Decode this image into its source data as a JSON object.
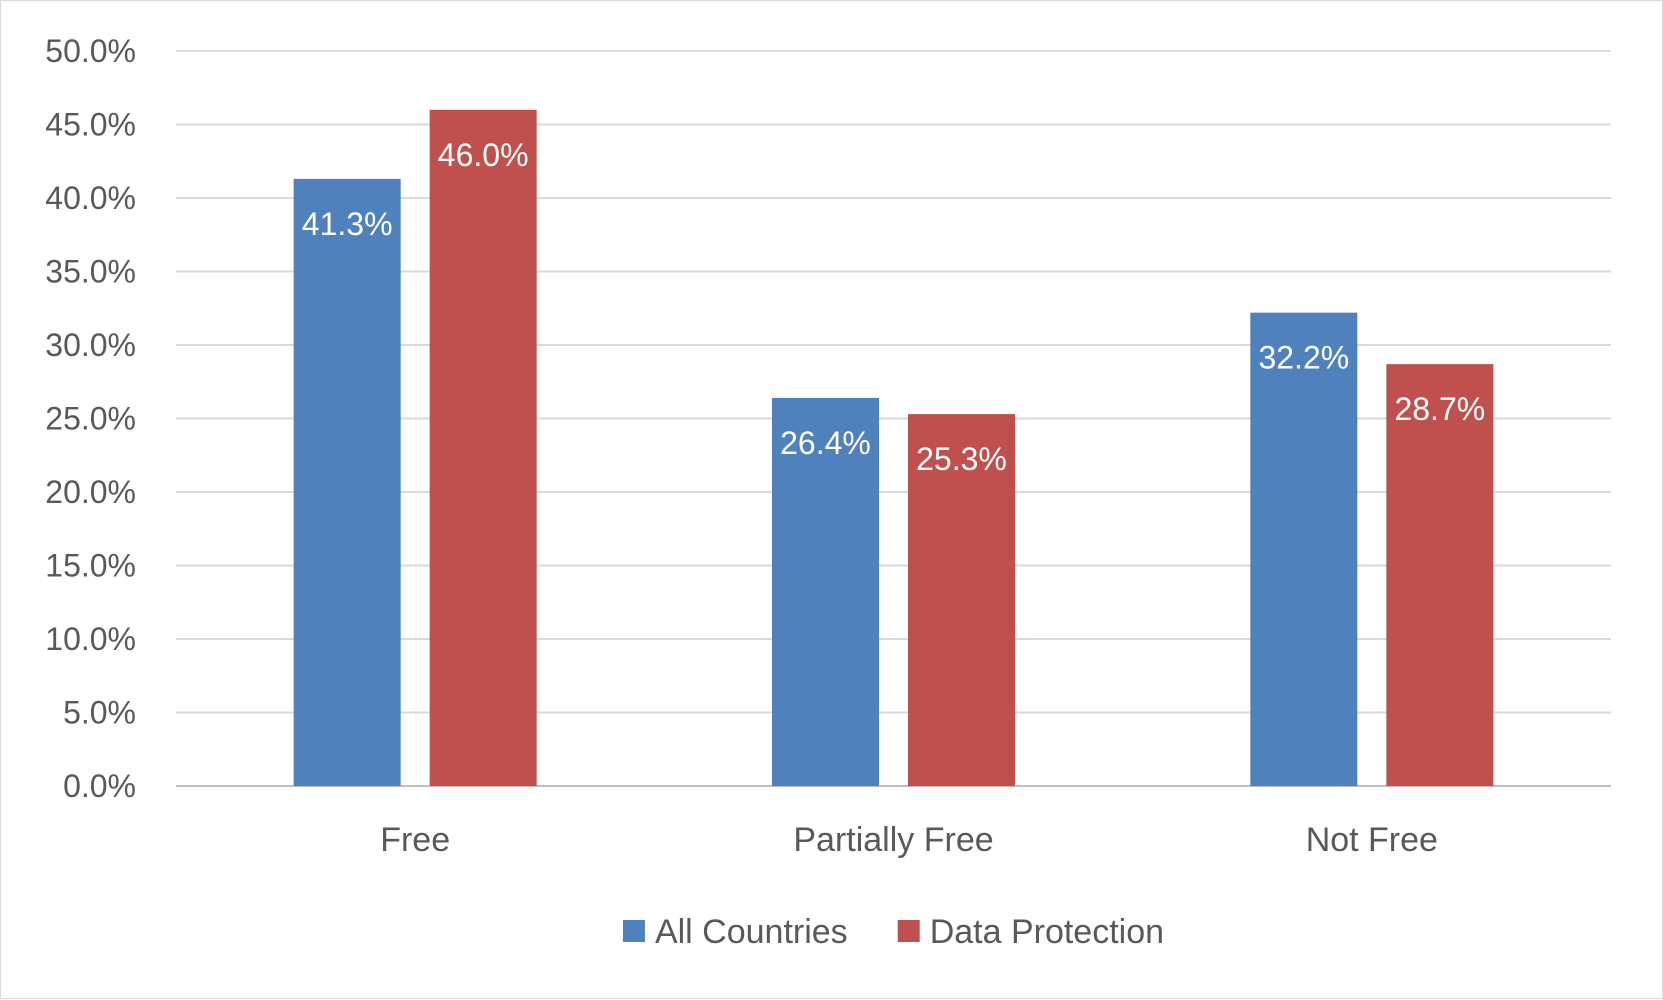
{
  "chart_data": {
    "type": "bar",
    "categories": [
      "Free",
      "Partially Free",
      "Not Free"
    ],
    "series": [
      {
        "name": "All Countries",
        "values": [
          41.3,
          26.4,
          32.2
        ],
        "labels": [
          "41.3%",
          "26.4%",
          "32.2%"
        ],
        "color": "#4f81bd"
      },
      {
        "name": "Data Protection",
        "values": [
          46.0,
          25.3,
          28.7
        ],
        "labels": [
          "46.0%",
          "25.3%",
          "28.7%"
        ],
        "color": "#c0504d"
      }
    ],
    "ylim": [
      0,
      50
    ],
    "y_ticks": [
      0,
      5,
      10,
      15,
      20,
      25,
      30,
      35,
      40,
      45,
      50
    ],
    "y_tick_labels": [
      "0.0%",
      "5.0%",
      "10.0%",
      "15.0%",
      "20.0%",
      "25.0%",
      "30.0%",
      "35.0%",
      "40.0%",
      "45.0%",
      "50.0%"
    ],
    "grid": true,
    "legend_position": "bottom",
    "title": "",
    "xlabel": "",
    "ylabel": ""
  }
}
